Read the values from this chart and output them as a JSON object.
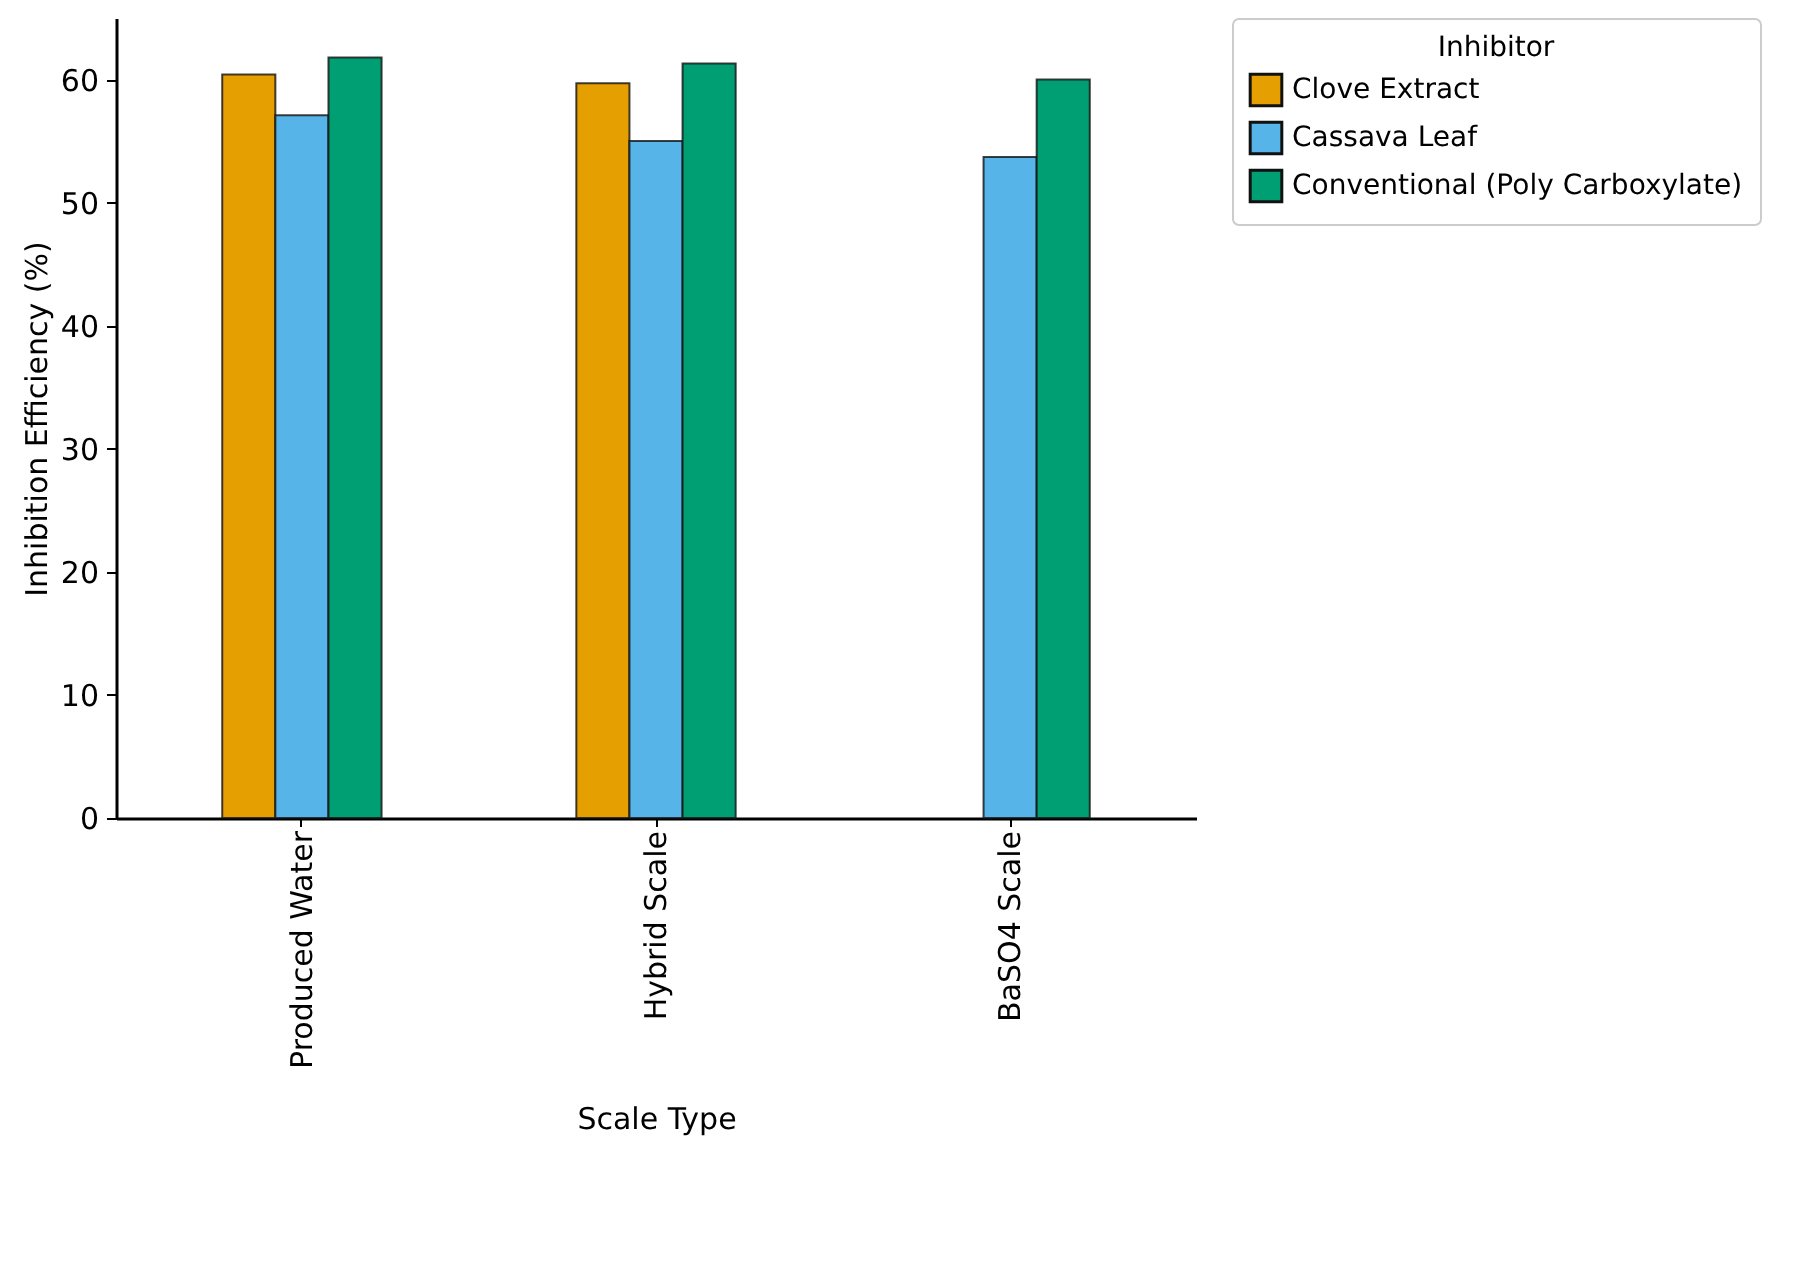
{
  "chart_data": {
    "type": "bar",
    "xlabel": "Scale Type",
    "ylabel": "Inhibition Efficiency (%)",
    "legend_title": "Inhibitor",
    "categories": [
      "Produced Water",
      "Hybrid Scale",
      "BaSO4 Scale"
    ],
    "series": [
      {
        "name": "Clove Extract",
        "color": "#e69f00",
        "values": [
          60.4,
          59.7,
          null
        ]
      },
      {
        "name": "Cassava Leaf",
        "color": "#56b4e9",
        "values": [
          57.1,
          55.0,
          53.7
        ]
      },
      {
        "name": "Conventional (Poly Carboxylate)",
        "color": "#009e73",
        "values": [
          61.8,
          61.3,
          60.0
        ]
      }
    ],
    "ylim": [
      0,
      65
    ],
    "yticks": [
      0,
      10,
      20,
      30,
      40,
      50,
      60
    ],
    "grid": false,
    "legend": "top right"
  }
}
